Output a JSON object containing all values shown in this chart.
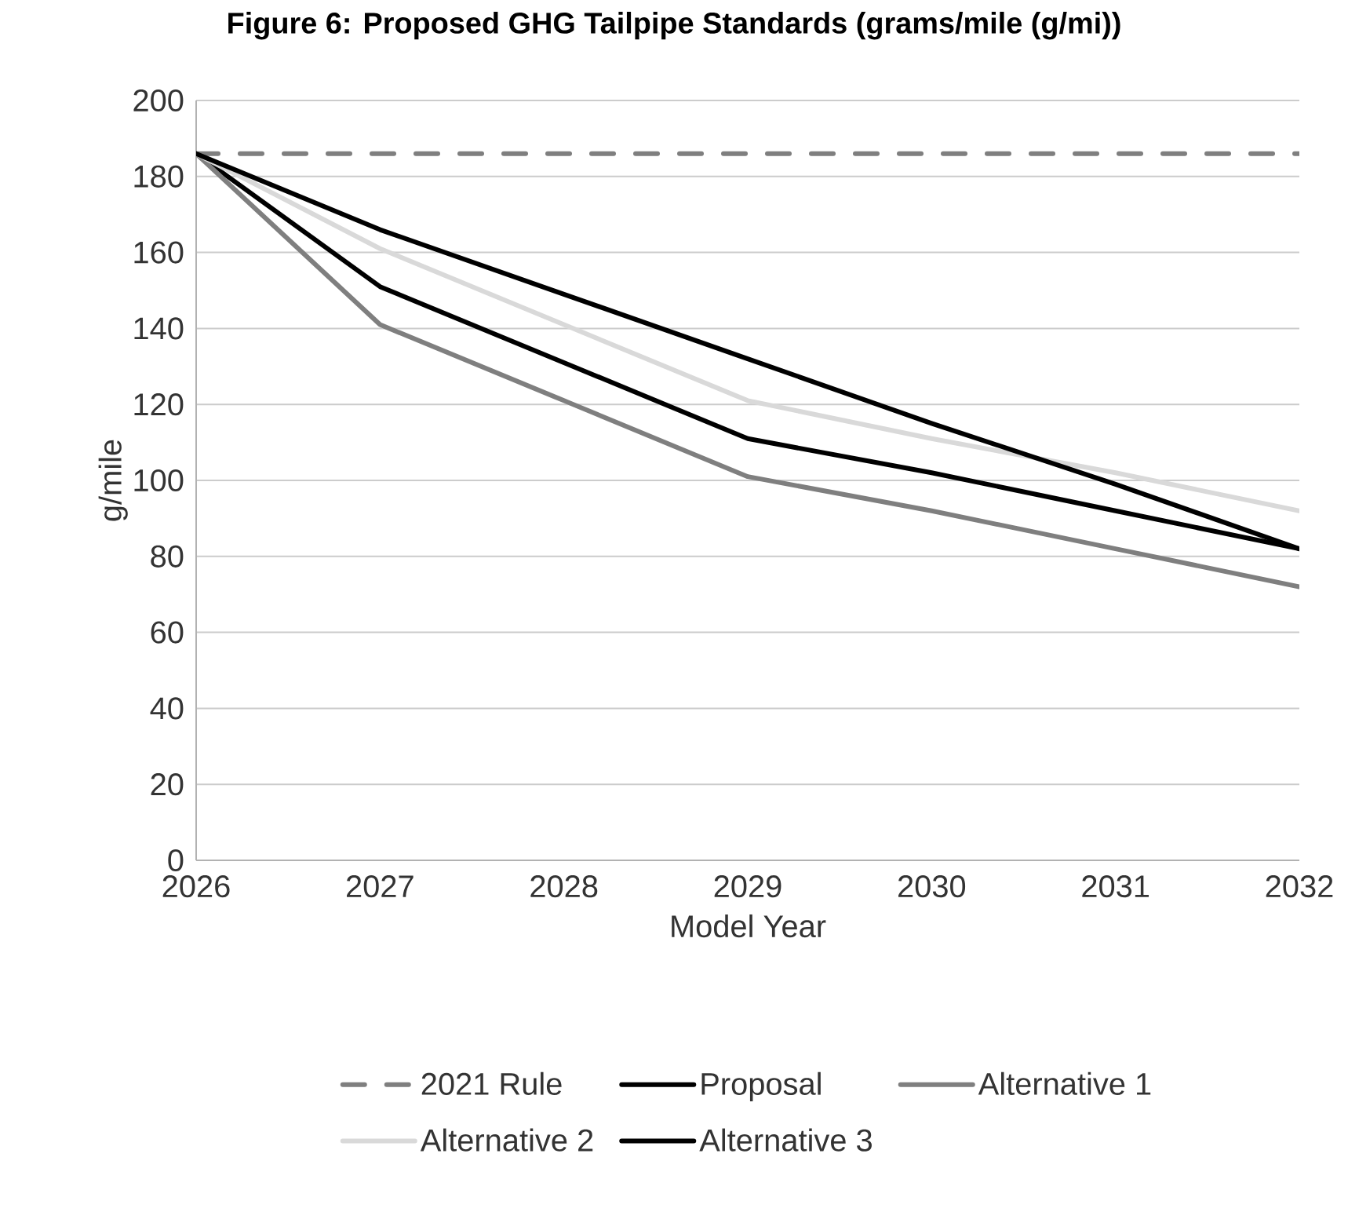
{
  "chart_data": {
    "type": "line",
    "title": "Figure 6: Proposed GHG Tailpipe Standards (grams/mile (g/mi))",
    "xlabel": "Model Year",
    "ylabel": "g/mile",
    "x": [
      2026,
      2027,
      2028,
      2029,
      2030,
      2031,
      2032
    ],
    "series": [
      {
        "name": "2021 Rule",
        "color": "#7f7f7f",
        "line_style": "dashed",
        "values": [
          186,
          186,
          186,
          186,
          186,
          186,
          186
        ]
      },
      {
        "name": "Proposal",
        "color": "#000000",
        "line_style": "solid",
        "values": [
          186,
          151,
          131,
          111,
          102,
          92,
          82
        ]
      },
      {
        "name": "Alternative 1",
        "color": "#7f7f7f",
        "line_style": "solid",
        "values": [
          186,
          141,
          121,
          101,
          92,
          82,
          72
        ]
      },
      {
        "name": "Alternative 2",
        "color": "#d9d9d9",
        "line_style": "solid",
        "values": [
          186,
          161,
          141,
          121,
          111,
          102,
          92
        ]
      },
      {
        "name": "Alternative 3",
        "color": "#000000",
        "line_style": "solid",
        "values": [
          186,
          166,
          149,
          132,
          115,
          99,
          82
        ]
      }
    ],
    "xlim": [
      2026,
      2032
    ],
    "xticks": [
      2026,
      2027,
      2028,
      2029,
      2030,
      2031,
      2032
    ],
    "ylim": [
      0,
      200
    ],
    "yticks": [
      0,
      20,
      40,
      60,
      80,
      100,
      120,
      140,
      160,
      180,
      200
    ],
    "grid": "y",
    "legend": "bottom"
  }
}
